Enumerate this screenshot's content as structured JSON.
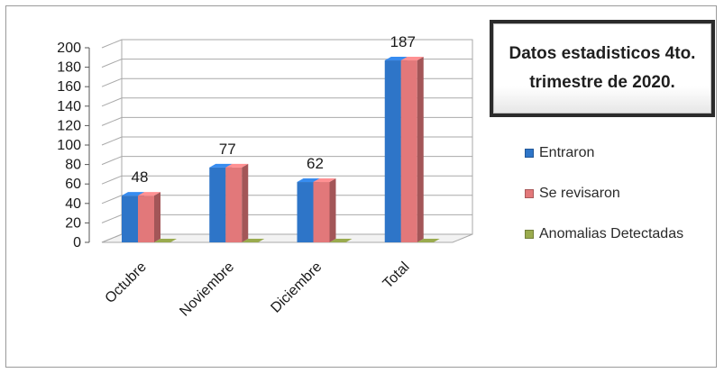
{
  "chart_data": {
    "type": "bar",
    "title": "Datos estadisticos 4to.\ntrimestre de 2020.",
    "categories": [
      "Octubre",
      "Noviembre",
      "Diciembre",
      "Total"
    ],
    "series": [
      {
        "name": "Entraron",
        "values": [
          48,
          77,
          62,
          187
        ],
        "color": "#2e75c8"
      },
      {
        "name": "Se revisaron",
        "values": [
          48,
          77,
          62,
          187
        ],
        "color": "#e2787a"
      },
      {
        "name": "Anomalias Detectadas",
        "values": [
          0,
          0,
          0,
          0
        ],
        "color": "#9aab4e"
      }
    ],
    "data_labels": [
      48,
      77,
      62,
      187
    ],
    "y_ticks": [
      0,
      20,
      40,
      60,
      80,
      100,
      120,
      140,
      160,
      180,
      200
    ],
    "ylim": [
      0,
      200
    ],
    "xlabel": "",
    "ylabel": "",
    "grid": true,
    "legend_position": "right"
  },
  "colors": {
    "entraron": "#2e75c8",
    "se_revisaron": "#e2787a",
    "anomalias": "#9aab4e",
    "gridline": "#a9a9a9",
    "title_border": "#2b2b2b"
  }
}
